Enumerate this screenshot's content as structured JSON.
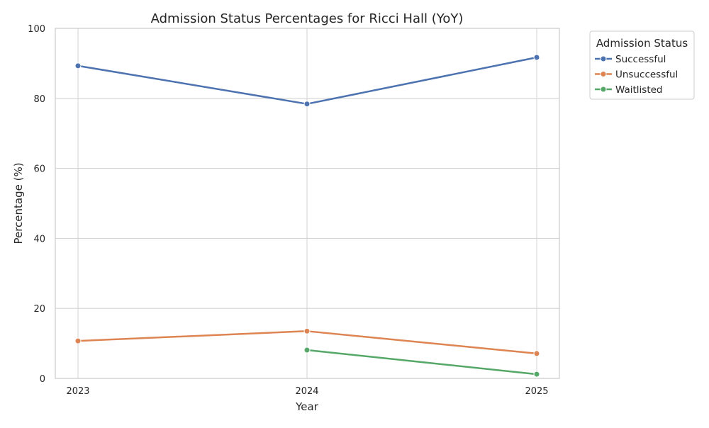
{
  "chart_data": {
    "type": "line",
    "title": "Admission Status Percentages for Ricci Hall (YoY)",
    "xlabel": "Year",
    "ylabel": "Percentage (%)",
    "categories": [
      "2023",
      "2024",
      "2025"
    ],
    "ylim": [
      0,
      100
    ],
    "yticks": [
      0,
      20,
      40,
      60,
      80,
      100
    ],
    "grid": true,
    "legend": {
      "title": "Admission Status",
      "placement": "outside-top-right"
    },
    "series": [
      {
        "name": "Successful",
        "color": "#4c72b0",
        "values": [
          89.3,
          78.4,
          91.7
        ]
      },
      {
        "name": "Unsuccessful",
        "color": "#dd8452",
        "values": [
          10.7,
          13.5,
          7.1
        ]
      },
      {
        "name": "Waitlisted",
        "color": "#55a868",
        "values": [
          null,
          8.1,
          1.2
        ]
      }
    ]
  }
}
